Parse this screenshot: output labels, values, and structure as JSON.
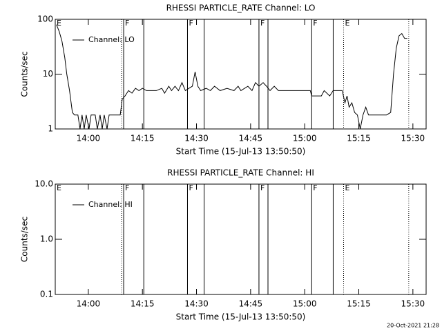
{
  "chart_data": [
    {
      "type": "line",
      "title": "RHESSI PARTICLE_RATE Channel: LO",
      "xlabel": "Start Time (15-Jul-13 13:50:50)",
      "ylabel": "Counts/sec",
      "log_y": true,
      "legend": "upper left",
      "xlim": [
        "13:50:50",
        "15:33:40"
      ],
      "xticks": [
        "14:00",
        "14:15",
        "14:30",
        "14:45",
        "15:00",
        "15:15",
        "15:30"
      ],
      "ylim": [
        1,
        100
      ],
      "yticks": [
        1,
        10,
        100
      ],
      "series": [
        {
          "name": "Channel: LO",
          "color": "#000000",
          "x": [
            "13:51:09",
            "13:51:55",
            "13:52:42",
            "13:53:28",
            "13:54:02",
            "13:54:48",
            "13:55:35",
            "13:56:09",
            "13:57:07",
            "13:57:42",
            "13:58:16",
            "13:58:51",
            "13:59:25",
            "14:00:12",
            "14:00:46",
            "14:01:55",
            "14:02:30",
            "14:03:16",
            "14:03:51",
            "14:04:25",
            "14:05:12",
            "14:05:46",
            "14:08:51",
            "14:09:25",
            "14:10:12",
            "14:11:09",
            "14:12:07",
            "14:13:05",
            "14:14:02",
            "14:15:00",
            "14:16:09",
            "14:17:19",
            "14:18:51",
            "14:20:23",
            "14:21:09",
            "14:22:19",
            "14:23:05",
            "14:24:02",
            "14:25:00",
            "14:25:58",
            "14:26:55",
            "14:27:53",
            "14:28:51",
            "14:29:37",
            "14:30:23",
            "14:31:09",
            "14:32:42",
            "14:33:51",
            "14:35:00",
            "14:36:33",
            "14:38:28",
            "14:40:23",
            "14:41:33",
            "14:42:19",
            "14:44:14",
            "14:45:23",
            "14:46:21",
            "14:47:19",
            "14:48:28",
            "14:49:26",
            "14:50:23",
            "14:51:33",
            "14:52:42",
            "14:53:51",
            "14:55:47",
            "14:57:42",
            "14:59:37",
            "15:01:33",
            "15:01:56",
            "15:03:28",
            "15:04:37",
            "15:05:24",
            "15:06:56",
            "15:07:54",
            "15:09:14",
            "15:10:24",
            "15:11:10",
            "15:11:44",
            "15:12:19",
            "15:13:05",
            "15:13:51",
            "15:14:37",
            "15:15:24",
            "15:16:10",
            "15:16:56",
            "15:17:42",
            "15:18:51",
            "15:22:42",
            "15:23:51",
            "15:24:38",
            "15:25:24",
            "15:26:10",
            "15:26:56",
            "15:27:42",
            "15:28:28"
          ],
          "values": [
            80,
            60,
            40,
            20,
            10,
            5,
            2,
            1.8,
            1.8,
            1,
            1.8,
            1,
            1.8,
            1,
            1.8,
            1.8,
            1,
            1.8,
            1,
            1.8,
            1,
            1.8,
            1.8,
            3.5,
            4,
            5,
            4.5,
            5.5,
            5,
            5.5,
            5,
            5,
            5,
            5.5,
            4.5,
            6,
            5,
            6,
            5,
            7,
            5,
            5.5,
            6,
            11,
            6,
            5,
            5.5,
            5,
            6,
            5,
            5.5,
            5,
            6,
            5,
            6,
            5,
            7,
            6,
            7,
            6,
            5,
            6,
            5,
            5,
            5,
            5,
            5,
            5,
            4,
            4,
            4,
            5,
            4,
            5,
            5,
            5,
            3,
            4,
            2.5,
            3,
            2,
            1.8,
            1,
            1.8,
            2.5,
            1.8,
            1.8,
            1.8,
            2,
            10,
            30,
            50,
            55,
            45,
            45
          ]
        }
      ],
      "events": [
        {
          "x": "14:09:14",
          "style": "dotted"
        },
        {
          "x": "14:09:48",
          "style": "solid"
        },
        {
          "x": "14:15:23",
          "style": "solid"
        },
        {
          "x": "14:27:30",
          "style": "solid"
        },
        {
          "x": "14:32:07",
          "style": "solid"
        },
        {
          "x": "14:47:19",
          "style": "solid"
        },
        {
          "x": "14:49:49",
          "style": "solid"
        },
        {
          "x": "15:01:56",
          "style": "solid"
        },
        {
          "x": "15:07:54",
          "style": "solid"
        },
        {
          "x": "15:10:47",
          "style": "dotted"
        },
        {
          "x": "15:28:51",
          "style": "dotted"
        }
      ],
      "flags": [
        {
          "x": "13:50:50",
          "label": "E"
        },
        {
          "x": "14:09:48",
          "label": "F"
        },
        {
          "x": "14:27:30",
          "label": "F"
        },
        {
          "x": "14:47:19",
          "label": "F"
        },
        {
          "x": "15:01:56",
          "label": "F"
        },
        {
          "x": "15:10:47",
          "label": "E"
        }
      ]
    },
    {
      "type": "line",
      "title": "RHESSI PARTICLE_RATE Channel: HI",
      "xlabel": "Start Time (15-Jul-13 13:50:50)",
      "ylabel": "Counts/sec",
      "log_y": true,
      "legend": "upper left",
      "xlim": [
        "13:50:50",
        "15:33:40"
      ],
      "xticks": [
        "14:00",
        "14:15",
        "14:30",
        "14:45",
        "15:00",
        "15:15",
        "15:30"
      ],
      "ylim": [
        0.1,
        10
      ],
      "yticks": [
        {
          "value": 0.1,
          "label": "0.1"
        },
        {
          "value": 1,
          "label": "1.0"
        },
        {
          "value": 10,
          "label": "10.0"
        }
      ],
      "series": [
        {
          "name": "Channel: HI",
          "color": "#000000",
          "x": [],
          "values": []
        }
      ],
      "events": [
        {
          "x": "14:09:14",
          "style": "dotted"
        },
        {
          "x": "14:09:48",
          "style": "solid"
        },
        {
          "x": "14:15:23",
          "style": "solid"
        },
        {
          "x": "14:27:30",
          "style": "solid"
        },
        {
          "x": "14:32:07",
          "style": "solid"
        },
        {
          "x": "14:47:19",
          "style": "solid"
        },
        {
          "x": "14:49:49",
          "style": "solid"
        },
        {
          "x": "15:01:56",
          "style": "solid"
        },
        {
          "x": "15:07:54",
          "style": "solid"
        },
        {
          "x": "15:10:47",
          "style": "dotted"
        },
        {
          "x": "15:28:51",
          "style": "dotted"
        }
      ],
      "flags": [
        {
          "x": "13:50:50",
          "label": "E"
        },
        {
          "x": "14:09:48",
          "label": "F"
        },
        {
          "x": "14:27:30",
          "label": "F"
        },
        {
          "x": "14:47:19",
          "label": "F"
        },
        {
          "x": "15:01:56",
          "label": "F"
        },
        {
          "x": "15:10:47",
          "label": "E"
        }
      ]
    }
  ],
  "footer": "20-Oct-2021 21:28"
}
